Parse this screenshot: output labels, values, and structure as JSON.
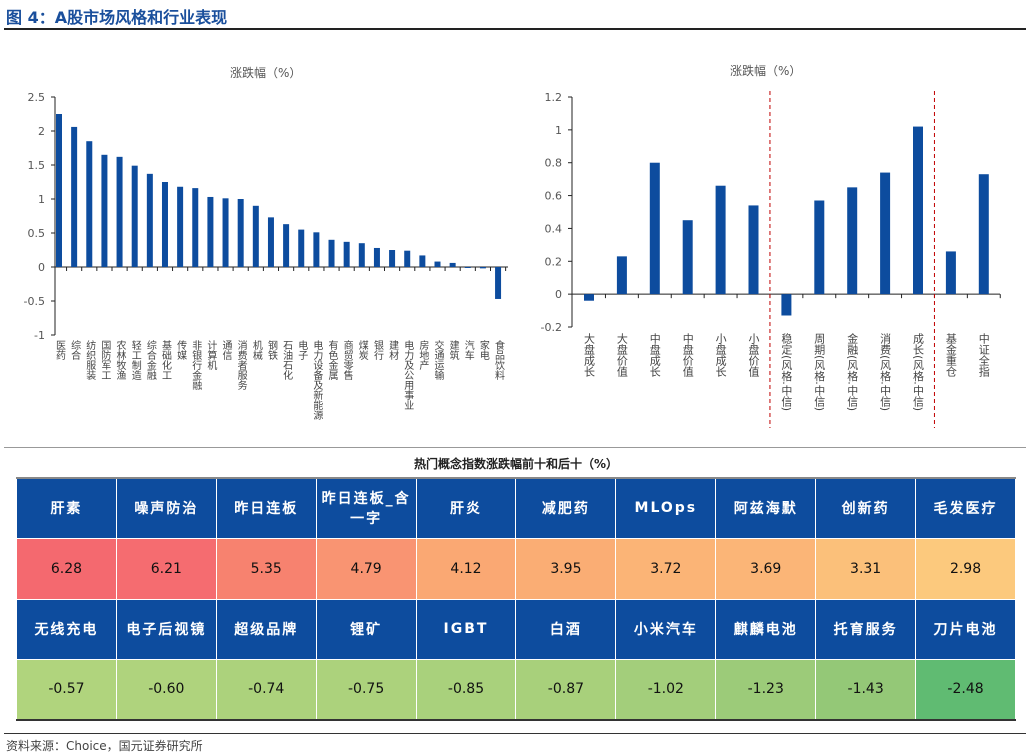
{
  "title": "图 4：A股市场风格和行业表现",
  "chart_data": [
    {
      "type": "bar",
      "title": "涨跌幅（%）",
      "ylim": [
        -1,
        2.5
      ],
      "yticks": [
        -1,
        -0.5,
        0,
        0.5,
        1,
        1.5,
        2,
        2.5
      ],
      "color": "#0d4c9e",
      "categories": [
        "医药",
        "综合",
        "纺织服装",
        "国防军工",
        "农林牧渔",
        "轻工制造",
        "综合金融",
        "基础化工",
        "传媒",
        "非银行金融",
        "计算机",
        "通信",
        "消费者服务",
        "机械",
        "钢铁",
        "石油石化",
        "电子",
        "电力设备及新能源",
        "有色金属",
        "商贸零售",
        "煤炭",
        "银行",
        "建材",
        "电力及公用事业",
        "房地产",
        "交通运输",
        "建筑",
        "汽车",
        "家电",
        "食品饮料"
      ],
      "values": [
        2.25,
        2.06,
        1.85,
        1.65,
        1.62,
        1.49,
        1.37,
        1.25,
        1.18,
        1.16,
        1.03,
        1.01,
        1.0,
        0.9,
        0.73,
        0.63,
        0.55,
        0.51,
        0.4,
        0.37,
        0.35,
        0.28,
        0.25,
        0.24,
        0.17,
        0.08,
        0.06,
        -0.01,
        -0.02,
        -0.47
      ]
    },
    {
      "type": "bar",
      "title": "涨跌幅（%）",
      "ylim": [
        -0.2,
        1.2
      ],
      "yticks": [
        -0.2,
        0.0,
        0.2,
        0.4,
        0.6,
        0.8,
        1.0,
        1.2
      ],
      "color": "#0d4c9e",
      "divider_color": "#c00000",
      "categories": [
        "大盘成长",
        "大盘价值",
        "中盘成长",
        "中盘价值",
        "小盘成长",
        "小盘价值",
        "稳定(风格.中信)",
        "周期(风格.中信)",
        "金融(风格.中信)",
        "消费(风格.中信)",
        "成长(风格.中信)",
        "基金重仓",
        "中证全指"
      ],
      "values": [
        -0.04,
        0.23,
        0.8,
        0.45,
        0.66,
        0.54,
        -0.13,
        0.57,
        0.65,
        0.74,
        1.02,
        0.26,
        0.73
      ],
      "dividers_after": [
        "小盘价值",
        "成长(风格.中信)"
      ]
    }
  ],
  "table": {
    "title": "热门概念指数涨跌幅前十和后十（%）",
    "header_color": "#0d4c9e",
    "top": [
      {
        "name": "肝素",
        "value": "6.28",
        "color": "#f4696f"
      },
      {
        "name": "噪声防治",
        "value": "6.21",
        "color": "#f56c70"
      },
      {
        "name": "昨日连板",
        "value": "5.35",
        "color": "#f7826f"
      },
      {
        "name": "昨日连板_含一字",
        "value": "4.79",
        "color": "#f99472"
      },
      {
        "name": "肝炎",
        "value": "4.12",
        "color": "#faa873"
      },
      {
        "name": "减肥药",
        "value": "3.95",
        "color": "#faad74"
      },
      {
        "name": "MLOps",
        "value": "3.72",
        "color": "#fbb476"
      },
      {
        "name": "阿兹海默",
        "value": "3.69",
        "color": "#fbb577"
      },
      {
        "name": "创新药",
        "value": "3.31",
        "color": "#fbc07a"
      },
      {
        "name": "毛发医疗",
        "value": "2.98",
        "color": "#fcc97d"
      }
    ],
    "bottom": [
      {
        "name": "无线充电",
        "value": "-0.57",
        "color": "#b0d47d"
      },
      {
        "name": "电子后视镜",
        "value": "-0.60",
        "color": "#afd37d"
      },
      {
        "name": "超级品牌",
        "value": "-0.74",
        "color": "#acd27c"
      },
      {
        "name": "锂矿",
        "value": "-0.75",
        "color": "#acd27c"
      },
      {
        "name": "IGBT",
        "value": "-0.85",
        "color": "#a9d17c"
      },
      {
        "name": "白酒",
        "value": "-0.87",
        "color": "#a8d07b"
      },
      {
        "name": "小米汽车",
        "value": "-1.02",
        "color": "#a3ce7b"
      },
      {
        "name": "麒麟电池",
        "value": "-1.23",
        "color": "#9ccb79"
      },
      {
        "name": "托育服务",
        "value": "-1.43",
        "color": "#94c877"
      },
      {
        "name": "刀片电池",
        "value": "-2.48",
        "color": "#60bb72"
      }
    ]
  },
  "footer": "资料来源：Choice，国元证券研究所"
}
